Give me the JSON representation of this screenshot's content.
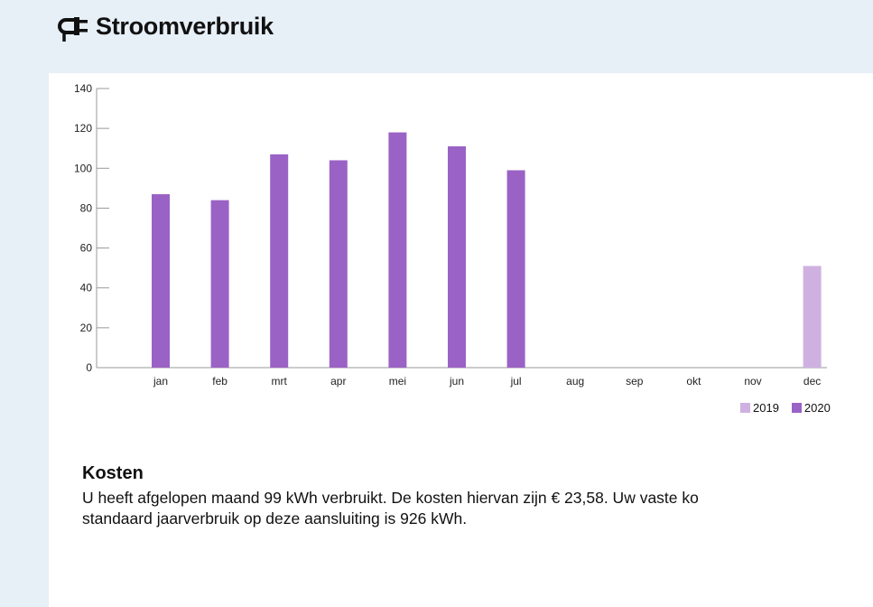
{
  "header": {
    "title": "Stroomverbruik",
    "icon": "plug-icon"
  },
  "colors": {
    "series_2019": "#cfb1e1",
    "series_2020": "#9b62c5",
    "page_bg": "#e7eff7"
  },
  "chart_data": {
    "type": "bar",
    "categories": [
      "jan",
      "feb",
      "mrt",
      "apr",
      "mei",
      "jun",
      "jul",
      "aug",
      "sep",
      "okt",
      "nov",
      "dec"
    ],
    "series": [
      {
        "name": "2019",
        "values": [
          null,
          null,
          null,
          null,
          null,
          null,
          null,
          null,
          null,
          null,
          null,
          51
        ]
      },
      {
        "name": "2020",
        "values": [
          87,
          84,
          107,
          104,
          118,
          111,
          99,
          null,
          null,
          null,
          null,
          null
        ]
      }
    ],
    "yticks": [
      0,
      20,
      40,
      60,
      80,
      100,
      120,
      140
    ],
    "ylim": [
      0,
      140
    ],
    "title": "",
    "xlabel": "",
    "ylabel": "",
    "legend": "bottom-right",
    "grid": false
  },
  "legend": {
    "items": [
      "2019",
      "2020"
    ]
  },
  "costs": {
    "title": "Kosten",
    "text": "U heeft afgelopen maand 99 kWh verbruikt. De kosten hiervan zijn € 23,58. Uw vaste ko\nstandaard jaarverbruik op deze aansluiting is 926 kWh."
  }
}
